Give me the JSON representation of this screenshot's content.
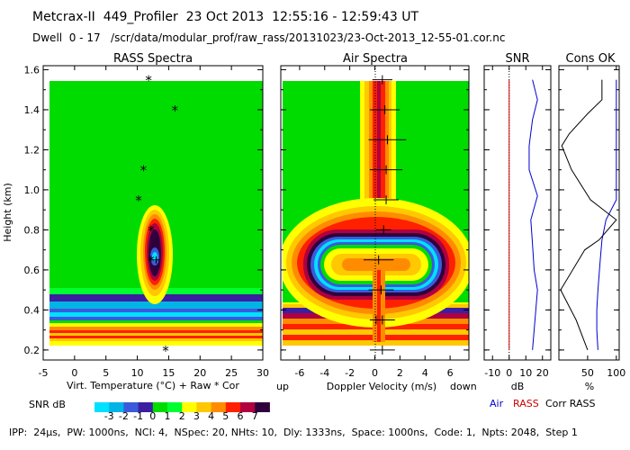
{
  "header": {
    "line1": "Metcrax-II  449_Profiler  23 Oct 2013  12:55:16 - 12:59:43 UT",
    "line2": "Dwell  0 - 17   /scr/data/modular_prof/raw_rass/20131023/23-Oct-2013_12-55-01.cor.nc"
  },
  "footer": "IPP:  24μs,  PW: 1000ns,  NCI: 4,  NSpec: 20, NHts: 10,  Dly: 1333ns,  Space: 1000ns,  Code: 1,  Npts: 2048,  Step 1",
  "chart_data": [
    {
      "type": "heatmap",
      "title": "RASS Spectra",
      "xlabel": "Virt. Temperature (°C)   + Raw   * Cor",
      "ylabel": "Height (km)",
      "xlim": [
        -5,
        30
      ],
      "ylim": [
        0.15,
        1.62
      ],
      "xticks": [
        "-5",
        "0",
        "5",
        "10",
        "15",
        "20",
        "25",
        "30"
      ],
      "yticks": [
        "0.2",
        "0.4",
        "0.6",
        "0.8",
        "1.0",
        "1.2",
        "1.4",
        "1.6"
      ],
      "cor_points": [
        {
          "x": 11.8,
          "y": 1.55
        },
        {
          "x": 16.0,
          "y": 1.4
        },
        {
          "x": 11.0,
          "y": 1.1
        },
        {
          "x": 10.2,
          "y": 0.95
        },
        {
          "x": 12.2,
          "y": 0.8
        },
        {
          "x": 12.2,
          "y": 0.65
        },
        {
          "x": 14.5,
          "y": 0.2
        }
      ],
      "raw_points": [
        {
          "x": 13.0,
          "y": 0.65
        }
      ]
    },
    {
      "type": "heatmap",
      "title": "Air Spectra",
      "xlabel": "Doppler Velocity (m/s)",
      "xlabel_left": "up",
      "xlabel_right": "down",
      "xlim": [
        -7.5,
        7.5
      ],
      "ylim": [
        0.15,
        1.62
      ],
      "xticks": [
        "-6",
        "-4",
        "-2",
        "0",
        "2",
        "4",
        "6"
      ],
      "velocity_points": [
        {
          "x": 0.6,
          "y": 1.55,
          "err": 0.8
        },
        {
          "x": 0.8,
          "y": 1.4,
          "err": 1.2
        },
        {
          "x": 1.0,
          "y": 1.25,
          "err": 1.5
        },
        {
          "x": 0.9,
          "y": 1.1,
          "err": 1.3
        },
        {
          "x": 0.9,
          "y": 0.95,
          "err": 1.0
        },
        {
          "x": 0.7,
          "y": 0.8,
          "err": 0.6
        },
        {
          "x": 0.3,
          "y": 0.65,
          "err": 1.2
        },
        {
          "x": 0.5,
          "y": 0.5,
          "err": 1.0
        },
        {
          "x": 0.1,
          "y": 0.35,
          "err": 0.3
        },
        {
          "x": 0.6,
          "y": 0.35,
          "err": 1.0
        },
        {
          "x": 0.6,
          "y": 0.2,
          "err": 1.0
        }
      ]
    },
    {
      "type": "line",
      "title": "SNR",
      "xlabel": "dB",
      "xlim": [
        -15,
        25
      ],
      "xticks": [
        "-10",
        "0",
        "10",
        "20"
      ],
      "legend": [
        "Air",
        "RASS",
        "Corr RASS"
      ],
      "series": [
        {
          "name": "Air",
          "color": "#0000cc",
          "points": [
            [
              14,
              1.55
            ],
            [
              17,
              1.45
            ],
            [
              14,
              1.35
            ],
            [
              12,
              1.22
            ],
            [
              12,
              1.1
            ],
            [
              17,
              0.97
            ],
            [
              13,
              0.85
            ],
            [
              14,
              0.73
            ],
            [
              15,
              0.6
            ],
            [
              17,
              0.5
            ],
            [
              16,
              0.4
            ],
            [
              15,
              0.3
            ],
            [
              14,
              0.2
            ]
          ]
        },
        {
          "name": "RASS",
          "color": "#cc0000",
          "points": [
            [
              0,
              1.55
            ],
            [
              0,
              1.4
            ],
            [
              0,
              1.2
            ],
            [
              0,
              1.0
            ],
            [
              0,
              0.8
            ],
            [
              0,
              0.6
            ],
            [
              0,
              0.4
            ],
            [
              0,
              0.2
            ]
          ]
        }
      ]
    },
    {
      "type": "line",
      "title": "Cons OK",
      "xlabel": "%",
      "xlim": [
        0,
        105
      ],
      "xticks": [
        "50",
        "100"
      ],
      "series": [
        {
          "name": "Air",
          "color": "#0000cc",
          "points": [
            [
              100,
              1.55
            ],
            [
              100,
              0.95
            ],
            [
              82,
              0.85
            ],
            [
              75,
              0.75
            ],
            [
              72,
              0.65
            ],
            [
              68,
              0.5
            ],
            [
              66,
              0.4
            ],
            [
              66,
              0.3
            ],
            [
              68,
              0.2
            ]
          ]
        },
        {
          "name": "RASS",
          "color": "#000000",
          "points": [
            [
              75,
              1.55
            ],
            [
              75,
              1.45
            ],
            [
              50,
              1.38
            ],
            [
              18,
              1.28
            ],
            [
              5,
              1.22
            ],
            [
              22,
              1.1
            ],
            [
              55,
              0.95
            ],
            [
              100,
              0.85
            ],
            [
              70,
              0.75
            ],
            [
              45,
              0.7
            ],
            [
              3,
              0.5
            ],
            [
              30,
              0.35
            ],
            [
              50,
              0.2
            ]
          ]
        }
      ]
    }
  ],
  "colorbar": {
    "label": "SNR dB",
    "ticks": [
      "-3",
      "-2",
      "-1",
      "0",
      "1",
      "2",
      "3",
      "4",
      "5",
      "6",
      "7"
    ],
    "colors": [
      "#00e0ff",
      "#00b4e6",
      "#3a5adc",
      "#3b1fa0",
      "#00dc00",
      "#00ff30",
      "#ffff00",
      "#ffc800",
      "#ff8c00",
      "#ff2000",
      "#b00040",
      "#30003c"
    ]
  }
}
